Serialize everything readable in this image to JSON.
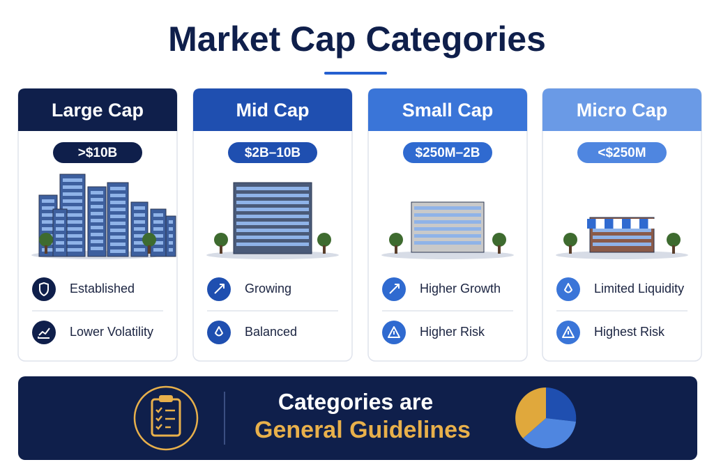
{
  "title": "Market Cap Categories",
  "cards": [
    {
      "name": "Large Cap",
      "range": ">$10B",
      "traits": [
        "Established",
        "Lower Volatility"
      ]
    },
    {
      "name": "Mid Cap",
      "range": "$2B–10B",
      "traits": [
        "Growing",
        "Balanced"
      ]
    },
    {
      "name": "Small Cap",
      "range": "$250M–2B",
      "traits": [
        "Higher Growth",
        "Higher Risk"
      ]
    },
    {
      "name": "Micro Cap",
      "range": "<$250M",
      "traits": [
        "Limited Liquidity",
        "Highest Risk"
      ]
    }
  ],
  "footer": {
    "line1": "Categories are",
    "line2": "General Guidelines"
  }
}
